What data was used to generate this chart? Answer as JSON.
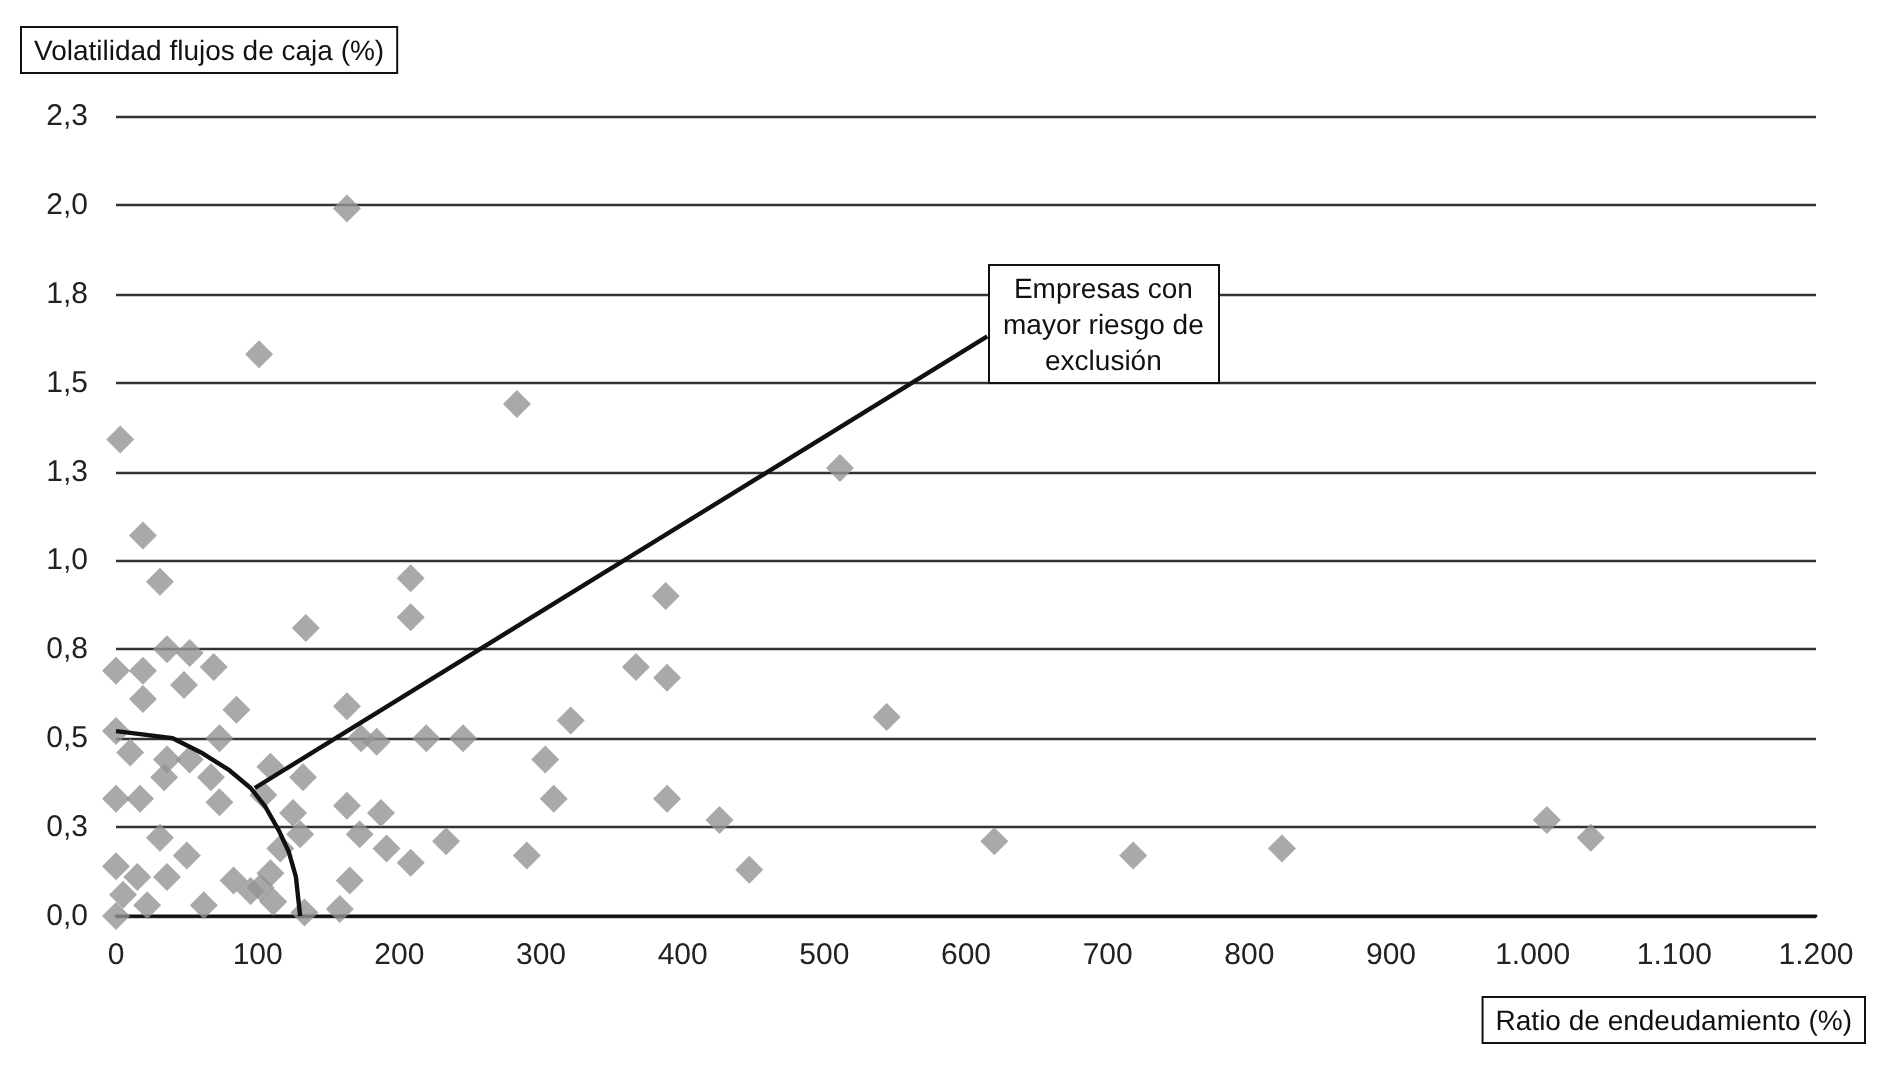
{
  "chart_data": {
    "type": "scatter",
    "xlabel": "Ratio de endeudamiento (%)",
    "ylabel": "Volatilidad flujos de caja (%)",
    "annotations": [
      "Empresas con mayor riesgo de exclusión"
    ],
    "grid": "y",
    "series": [
      {
        "color": "#939393",
        "marker": "diamond",
        "x": [
          163,
          101,
          283,
          3,
          19,
          31,
          208,
          208,
          134,
          388,
          367,
          389,
          36,
          52,
          69,
          0,
          19,
          48,
          19,
          85,
          163,
          0,
          73,
          173,
          184,
          219,
          245,
          321,
          10,
          36,
          52,
          34,
          109,
          132,
          67,
          73,
          303,
          309,
          389,
          0,
          17,
          104,
          125,
          31,
          50,
          163,
          187,
          172,
          191,
          130,
          208,
          233,
          290,
          116,
          0,
          15,
          36,
          5,
          22,
          62,
          83,
          95,
          109,
          102,
          0,
          133,
          158,
          165,
          111,
          511,
          544,
          426,
          447,
          620,
          718,
          823,
          1010,
          1041
        ],
        "values": [
          1.99,
          1.58,
          1.44,
          1.34,
          1.07,
          0.94,
          0.95,
          0.84,
          0.81,
          0.9,
          0.7,
          0.67,
          0.75,
          0.74,
          0.7,
          0.69,
          0.69,
          0.65,
          0.61,
          0.58,
          0.59,
          0.52,
          0.5,
          0.5,
          0.49,
          0.5,
          0.5,
          0.55,
          0.46,
          0.44,
          0.44,
          0.39,
          0.42,
          0.39,
          0.39,
          0.32,
          0.44,
          0.33,
          0.33,
          0.33,
          0.33,
          0.34,
          0.29,
          0.22,
          0.17,
          0.31,
          0.29,
          0.23,
          0.19,
          0.23,
          0.15,
          0.21,
          0.17,
          0.19,
          0.14,
          0.11,
          0.11,
          0.06,
          0.03,
          0.03,
          0.1,
          0.07,
          0.12,
          0.08,
          0,
          0.01,
          0.02,
          0.1,
          0.04,
          1.26,
          0.56,
          0.27,
          0.13,
          0.21,
          0.17,
          0.19,
          0.27,
          0.22
        ]
      },
      {
        "type": "line",
        "color": "#111111",
        "marker": "none",
        "x": [
          0,
          20,
          40,
          60,
          80,
          95,
          105,
          115,
          122,
          127,
          130
        ],
        "values": [
          0.52,
          0.51,
          0.5,
          0.46,
          0.41,
          0.36,
          0.31,
          0.24,
          0.18,
          0.11,
          0
        ]
      }
    ],
    "xlim": [
      0,
      1200
    ],
    "xticks": [
      0,
      100,
      200,
      300,
      400,
      500,
      600,
      700,
      800,
      900,
      {
        "value": 1000,
        "label": "1.000"
      },
      {
        "value": 1100,
        "label": "1.100"
      },
      {
        "value": 1200,
        "label": "1.200"
      }
    ],
    "ylim": [
      0,
      2.25
    ],
    "yticks": [
      {
        "value": 0,
        "label": "0,0"
      },
      {
        "value": 0.25,
        "label": "0,3"
      },
      {
        "value": 0.5,
        "label": "0,5"
      },
      {
        "value": 0.75,
        "label": "0,8"
      },
      {
        "value": 1,
        "label": "1,0"
      },
      {
        "value": 1.25,
        "label": "1,3"
      },
      {
        "value": 1.5,
        "label": "1,5"
      },
      {
        "value": 1.75,
        "label": "1,8"
      },
      {
        "value": 2,
        "label": "2,0"
      },
      {
        "value": 2.25,
        "label": "2,3"
      }
    ]
  }
}
